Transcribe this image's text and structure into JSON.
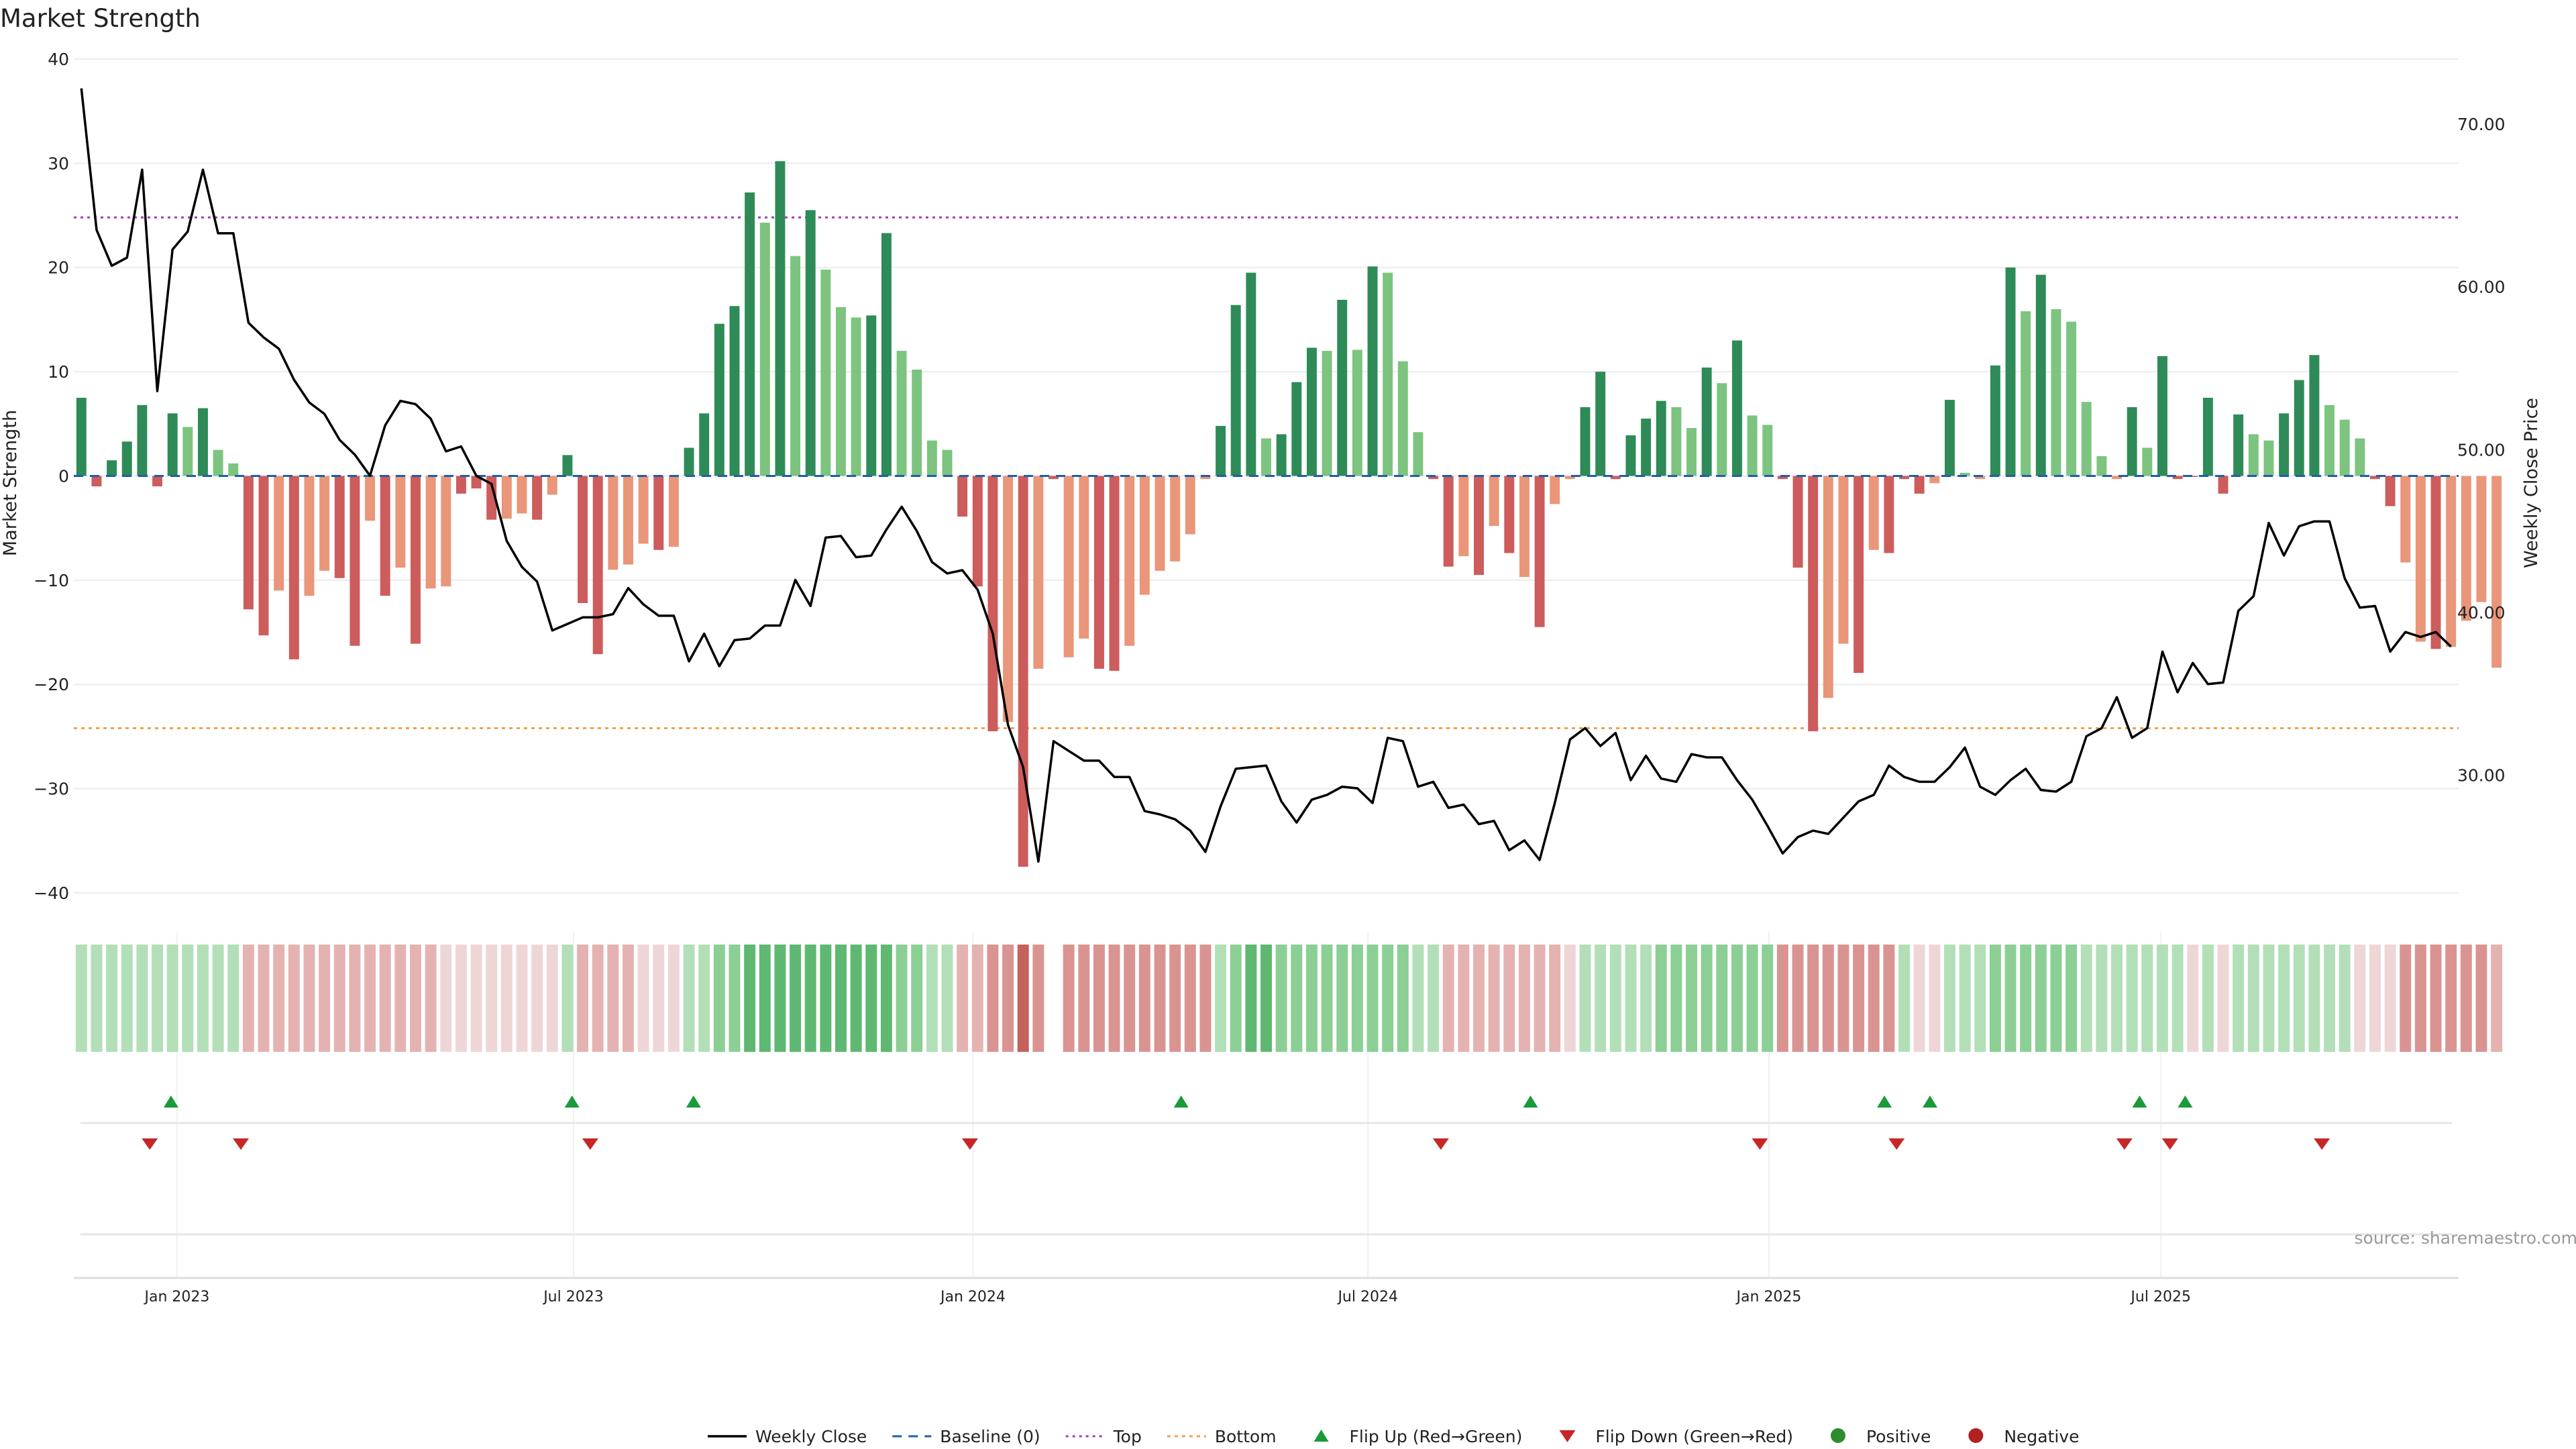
{
  "title": "Market Strength",
  "source": "source: sharemaestro.com",
  "colors": {
    "strong_green": "#2e8b57",
    "light_green": "#7cc47f",
    "strong_red": "#cd5c5c",
    "light_red": "#e9967a",
    "top_line": "#9b3fb4",
    "bottom_line": "#f0a050",
    "baseline": "#1f5fa8",
    "flip_up": "#1a9a3a",
    "flip_down": "#c62828",
    "price_line": "#000000",
    "positive_dot": "#2e8b2e",
    "negative_dot": "#b22222"
  },
  "chart_data": {
    "type": "bar",
    "title": "Market Strength",
    "ylabel": "Market Strength",
    "y2label": "Weekly Close Price",
    "ylim": [
      -42,
      40
    ],
    "y2lim": [
      21.5,
      74
    ],
    "yticks": [
      40,
      30,
      20,
      10,
      0,
      -10,
      -20,
      -30,
      -40
    ],
    "ytick_labels": [
      "40",
      "30",
      "20",
      "10",
      "0",
      "−10",
      "−20",
      "−30",
      "−40"
    ],
    "y2ticks": [
      70,
      60,
      50,
      40,
      30
    ],
    "y2tick_labels": [
      "70.00",
      "60.00",
      "50.00",
      "40.00",
      "30.00"
    ],
    "top_threshold": 24.8,
    "bottom_threshold": -24.2,
    "x_range": [
      0,
      157
    ],
    "xticks": [
      {
        "label": "Jan 2023",
        "x": 6.8
      },
      {
        "label": "Jul 2023",
        "x": 32.9
      },
      {
        "label": "Jan 2024",
        "x": 59.2
      },
      {
        "label": "Jul 2024",
        "x": 85.2
      },
      {
        "label": "Jan 2025",
        "x": 111.6
      },
      {
        "label": "Jul 2025",
        "x": 137.4
      }
    ],
    "strength": [
      7.5,
      -1.0,
      1.5,
      3.3,
      6.8,
      -1.0,
      6.0,
      4.7,
      6.5,
      2.5,
      1.2,
      -12.8,
      -15.3,
      -11.0,
      -17.6,
      -11.5,
      -9.1,
      -9.8,
      -16.3,
      -4.3,
      -11.5,
      -8.8,
      -16.1,
      -10.8,
      -10.6,
      -1.7,
      -1.2,
      -4.2,
      -4.1,
      -3.6,
      -4.2,
      -1.8,
      2.0,
      -12.2,
      -17.1,
      -9.0,
      -8.5,
      -6.5,
      -7.1,
      -6.8,
      2.7,
      6.0,
      14.6,
      16.3,
      27.2,
      24.3,
      30.2,
      21.1,
      25.5,
      19.8,
      16.2,
      15.2,
      15.4,
      23.3,
      12.0,
      10.2,
      3.4,
      2.5,
      -3.9,
      -10.6,
      -24.5,
      -23.6,
      -37.5,
      -18.5,
      -0.3,
      -17.4,
      -15.6,
      -18.5,
      -18.7,
      -16.3,
      -11.4,
      -9.1,
      -8.2,
      -5.6,
      -0.3,
      4.8,
      16.4,
      19.5,
      3.6,
      4.0,
      9.0,
      12.3,
      12.0,
      16.9,
      12.1,
      20.1,
      19.5,
      11.0,
      4.2,
      -0.3,
      -8.7,
      -7.7,
      -9.5,
      -4.8,
      -7.4,
      -9.7,
      -14.5,
      -2.7,
      -0.3,
      6.6,
      10.0,
      -0.3,
      3.9,
      5.5,
      7.2,
      6.6,
      4.6,
      10.4,
      8.9,
      13.0,
      5.8,
      4.9,
      -0.3,
      -8.8,
      -24.5,
      -21.3,
      -16.1,
      -18.9,
      -7.1,
      -7.4,
      -0.3,
      -1.7,
      -0.7,
      7.3,
      0.3,
      -0.3,
      10.6,
      20.0,
      15.8,
      19.3,
      16.0,
      14.8,
      7.1,
      1.9,
      -0.3,
      6.6,
      2.7,
      11.5,
      -0.3,
      -0.1,
      7.5,
      -1.7,
      5.9,
      4.0,
      3.4,
      6.0,
      9.2,
      11.6,
      6.8,
      5.4,
      3.6,
      -0.3,
      -2.9,
      -8.3,
      -15.9,
      -16.6,
      -16.4,
      -13.9,
      -12.1,
      -18.4
    ],
    "strength_shade": [
      "s",
      "s",
      "s",
      "s",
      "s",
      "s",
      "s",
      "l",
      "s",
      "l",
      "l",
      "s",
      "s",
      "l",
      "s",
      "l",
      "l",
      "s",
      "s",
      "l",
      "s",
      "l",
      "s",
      "l",
      "l",
      "s",
      "s",
      "s",
      "l",
      "l",
      "s",
      "l",
      "s",
      "s",
      "s",
      "l",
      "l",
      "l",
      "s",
      "l",
      "s",
      "s",
      "s",
      "s",
      "s",
      "l",
      "s",
      "l",
      "s",
      "l",
      "l",
      "l",
      "s",
      "s",
      "l",
      "l",
      "l",
      "l",
      "s",
      "s",
      "s",
      "l",
      "s",
      "l",
      "s",
      "l",
      "l",
      "s",
      "s",
      "l",
      "l",
      "l",
      "l",
      "l",
      "l",
      "s",
      "s",
      "s",
      "l",
      "s",
      "s",
      "s",
      "l",
      "s",
      "l",
      "s",
      "l",
      "l",
      "l",
      "s",
      "s",
      "l",
      "s",
      "l",
      "s",
      "l",
      "s",
      "l",
      "l",
      "s",
      "s",
      "s",
      "s",
      "s",
      "s",
      "l",
      "l",
      "s",
      "l",
      "s",
      "l",
      "l",
      "s",
      "s",
      "s",
      "l",
      "l",
      "s",
      "l",
      "s",
      "s",
      "s",
      "l",
      "s",
      "l",
      "l",
      "s",
      "s",
      "l",
      "s",
      "l",
      "l",
      "l",
      "l",
      "l",
      "s",
      "l",
      "s",
      "s",
      "s",
      "s",
      "s",
      "s",
      "l",
      "l",
      "s",
      "s",
      "s",
      "l",
      "l",
      "l",
      "s",
      "s",
      "l",
      "l",
      "s",
      "l",
      "l",
      "l",
      "l",
      "l",
      "s"
    ],
    "weekly_close": [
      72.2,
      63.5,
      61.3,
      61.8,
      67.2,
      53.6,
      62.3,
      63.4,
      67.2,
      63.3,
      63.3,
      57.8,
      56.9,
      56.2,
      54.3,
      52.9,
      52.2,
      50.6,
      49.7,
      48.4,
      51.5,
      53.0,
      52.8,
      51.9,
      49.9,
      50.2,
      48.4,
      47.9,
      44.4,
      42.8,
      41.9,
      38.9,
      39.3,
      39.7,
      39.7,
      39.9,
      41.5,
      40.5,
      39.8,
      39.8,
      37.0,
      38.7,
      36.7,
      38.3,
      38.4,
      39.2,
      39.2,
      42.0,
      40.4,
      44.6,
      44.7,
      43.4,
      43.5,
      45.1,
      46.5,
      45.0,
      43.1,
      42.4,
      42.6,
      41.4,
      38.7,
      33.1,
      30.5,
      24.7,
      32.1,
      31.5,
      30.9,
      30.9,
      29.9,
      29.9,
      27.8,
      27.6,
      27.3,
      26.6,
      25.3,
      28.1,
      30.4,
      30.5,
      30.6,
      28.4,
      27.1,
      28.5,
      28.8,
      29.3,
      29.2,
      28.3,
      32.3,
      32.1,
      29.3,
      29.6,
      28.0,
      28.2,
      27.0,
      27.2,
      25.4,
      26.0,
      24.8,
      28.3,
      32.2,
      32.9,
      31.8,
      32.6,
      29.7,
      31.2,
      29.8,
      29.6,
      31.3,
      31.1,
      31.1,
      29.7,
      28.5,
      26.9,
      25.2,
      26.2,
      26.6,
      26.4,
      27.4,
      28.4,
      28.8,
      30.6,
      29.9,
      29.6,
      29.6,
      30.5,
      31.7,
      29.3,
      28.8,
      29.7,
      30.4,
      29.1,
      29.0,
      29.6,
      32.4,
      32.9,
      34.8,
      32.3,
      32.9,
      37.6,
      35.1,
      36.9,
      35.6,
      35.7,
      40.1,
      41.0,
      45.5,
      43.5,
      45.3,
      45.6,
      45.6,
      42.1,
      40.3,
      40.4,
      37.6,
      38.8,
      38.5,
      38.8,
      37.9
    ]
  },
  "regime_strip": {
    "shades": [
      2,
      2,
      2,
      2,
      2,
      2,
      2,
      2,
      2,
      2,
      2,
      -2,
      -2,
      -2,
      -2,
      -2,
      -2,
      -2,
      -2,
      -2,
      -2,
      -2,
      -2,
      -2,
      -1,
      -1,
      -1,
      -1,
      -1,
      -1,
      -1,
      -1,
      2,
      -2,
      -2,
      -2,
      -2,
      -1,
      -1,
      -1,
      2,
      2,
      3,
      3,
      4,
      4,
      4,
      4,
      4,
      4,
      4,
      4,
      4,
      4,
      3,
      3,
      2,
      2,
      -2,
      -2,
      -3,
      -3,
      -4,
      -3,
      null,
      -3,
      -3,
      -3,
      -3,
      -3,
      -3,
      -3,
      -3,
      -3,
      -3,
      2,
      3,
      4,
      4,
      3,
      3,
      3,
      3,
      3,
      3,
      3,
      3,
      3,
      2,
      2,
      -2,
      -2,
      -2,
      -2,
      -2,
      -2,
      -2,
      -2,
      -1,
      2,
      2,
      2,
      2,
      2,
      3,
      3,
      3,
      3,
      3,
      3,
      3,
      3,
      -3,
      -3,
      -3,
      -3,
      -3,
      -3,
      -3,
      -3,
      2,
      -1,
      -1,
      2,
      2,
      2,
      3,
      3,
      3,
      3,
      3,
      3,
      2,
      2,
      2,
      2,
      2,
      2,
      2,
      -1,
      2,
      -1,
      2,
      2,
      2,
      2,
      2,
      2,
      2,
      2,
      -1,
      -1,
      -1,
      -3,
      -3,
      -3,
      -3,
      -3,
      -3,
      -2
    ]
  },
  "flips_up": [
    6.4,
    32.8,
    40.8,
    72.9,
    95.9,
    119.2,
    122.2,
    136.0,
    139.0
  ],
  "flips_down": [
    5.0,
    11.0,
    34.0,
    59.0,
    90.0,
    111.0,
    120.0,
    135.0,
    138.0,
    148.0
  ],
  "legend": [
    {
      "label": "Weekly Close",
      "type": "line"
    },
    {
      "label": "Baseline (0)",
      "type": "dash"
    },
    {
      "label": "Top",
      "type": "dot-top"
    },
    {
      "label": "Bottom",
      "type": "dot-bottom"
    },
    {
      "label": "Flip Up (Red→Green)",
      "type": "tri-up"
    },
    {
      "label": "Flip Down (Green→Red)",
      "type": "tri-down"
    },
    {
      "label": "Positive",
      "type": "dot-pos"
    },
    {
      "label": "Negative",
      "type": "dot-neg"
    }
  ]
}
